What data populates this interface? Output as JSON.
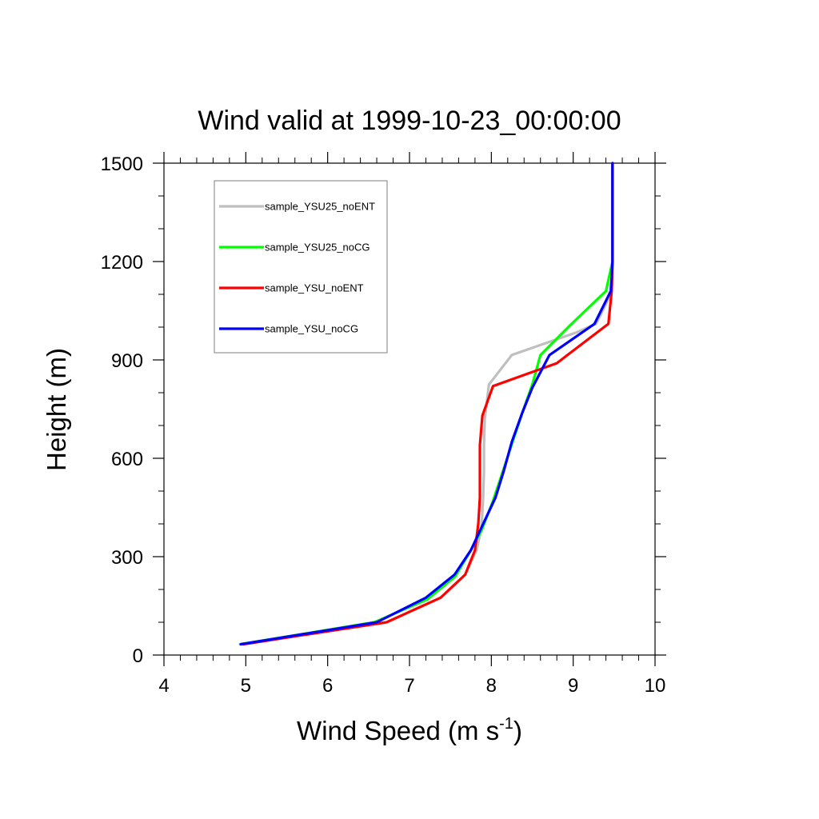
{
  "chart_data": {
    "type": "line",
    "title": "Wind valid at 1999-10-23_00:00:00",
    "xlabel": {
      "base": "Wind Speed (m s",
      "sup": "-1",
      "tail": ")"
    },
    "ylabel": "Height (m)",
    "xlim": [
      4,
      10
    ],
    "ylim": [
      0,
      1500
    ],
    "xticks": [
      "4",
      "5",
      "6",
      "7",
      "8",
      "9",
      "10"
    ],
    "yticks": [
      "0",
      "300",
      "600",
      "900",
      "1200",
      "1500"
    ],
    "legend_position": "top-left",
    "series": [
      {
        "name": "sample_YSU25_noENT",
        "color": "#bfbfbf",
        "points": [
          [
            4.97,
            33
          ],
          [
            6.72,
            100
          ],
          [
            7.38,
            175
          ],
          [
            7.68,
            245
          ],
          [
            7.82,
            320
          ],
          [
            7.88,
            390
          ],
          [
            7.9,
            480
          ],
          [
            7.91,
            560
          ],
          [
            7.91,
            640
          ],
          [
            7.92,
            720
          ],
          [
            7.97,
            825
          ],
          [
            8.25,
            915
          ],
          [
            9.05,
            985
          ],
          [
            9.28,
            1010
          ],
          [
            9.4,
            1070
          ],
          [
            9.47,
            1110
          ],
          [
            9.48,
            1200
          ],
          [
            9.48,
            1300
          ],
          [
            9.48,
            1400
          ],
          [
            9.48,
            1500
          ]
        ]
      },
      {
        "name": "sample_YSU25_noCG",
        "color": "#00ff00",
        "points": [
          [
            4.93,
            33
          ],
          [
            6.57,
            100
          ],
          [
            7.22,
            170
          ],
          [
            7.56,
            240
          ],
          [
            7.75,
            320
          ],
          [
            7.88,
            380
          ],
          [
            8.02,
            470
          ],
          [
            8.14,
            560
          ],
          [
            8.26,
            650
          ],
          [
            8.38,
            740
          ],
          [
            8.5,
            825
          ],
          [
            8.6,
            915
          ],
          [
            8.96,
            1005
          ],
          [
            9.4,
            1110
          ],
          [
            9.48,
            1200
          ],
          [
            9.48,
            1300
          ],
          [
            9.48,
            1400
          ],
          [
            9.48,
            1500
          ]
        ]
      },
      {
        "name": "sample_YSU_noENT",
        "color": "#ff0000",
        "points": [
          [
            4.97,
            33
          ],
          [
            6.72,
            100
          ],
          [
            7.38,
            175
          ],
          [
            7.68,
            245
          ],
          [
            7.8,
            320
          ],
          [
            7.84,
            400
          ],
          [
            7.86,
            480
          ],
          [
            7.86,
            560
          ],
          [
            7.86,
            640
          ],
          [
            7.89,
            730
          ],
          [
            8.02,
            820
          ],
          [
            8.8,
            890
          ],
          [
            8.93,
            915
          ],
          [
            9.43,
            1010
          ],
          [
            9.47,
            1110
          ],
          [
            9.48,
            1200
          ],
          [
            9.48,
            1300
          ],
          [
            9.48,
            1400
          ],
          [
            9.48,
            1500
          ]
        ]
      },
      {
        "name": "sample_YSU_noCG",
        "color": "#0000ff",
        "points": [
          [
            4.94,
            33
          ],
          [
            6.6,
            100
          ],
          [
            7.2,
            175
          ],
          [
            7.55,
            245
          ],
          [
            7.75,
            320
          ],
          [
            7.9,
            400
          ],
          [
            8.05,
            480
          ],
          [
            8.15,
            560
          ],
          [
            8.25,
            650
          ],
          [
            8.38,
            740
          ],
          [
            8.5,
            815
          ],
          [
            8.71,
            915
          ],
          [
            9.26,
            1010
          ],
          [
            9.46,
            1110
          ],
          [
            9.48,
            1200
          ],
          [
            9.48,
            1300
          ],
          [
            9.48,
            1400
          ],
          [
            9.48,
            1500
          ]
        ]
      }
    ]
  }
}
